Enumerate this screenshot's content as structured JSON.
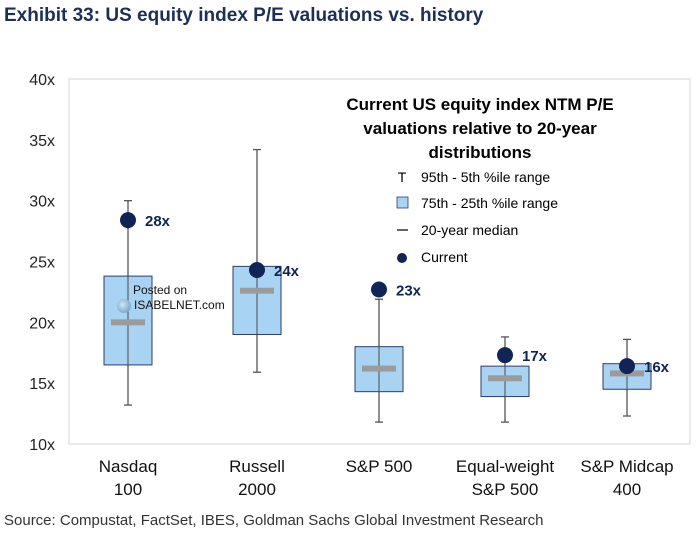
{
  "title": "Exhibit 33: US equity index P/E valuations vs. history",
  "source": "Source: Compustat, FactSet, IBES, Goldman Sachs Global Investment Research",
  "watermark": {
    "line1": "Posted on",
    "line2": "ISABELNET.com"
  },
  "colors": {
    "box_fill": "#a9d3f2",
    "box_stroke": "#2c3e6a",
    "median": "#9b9b9b",
    "current": "#0f2556",
    "whisker": "#555555",
    "title": "#1e2f56"
  },
  "chart_data": {
    "type": "box",
    "title": "Current US equity index NTM P/E valuations relative to 20-year distributions",
    "title_lines": [
      "Current US equity index NTM P/E",
      "valuations relative to 20-year",
      "distributions"
    ],
    "yaxis": {
      "min": 10,
      "max": 40,
      "step": 5,
      "tick_labels": [
        "10x",
        "15x",
        "20x",
        "25x",
        "30x",
        "35x",
        "40x"
      ]
    },
    "categories": [
      {
        "label_lines": [
          "Nasdaq",
          "100"
        ],
        "p5": 13.2,
        "p25": 16.5,
        "median": 20.0,
        "p75": 23.8,
        "p95": 30.0,
        "current": 28.4,
        "current_label": "28x"
      },
      {
        "label_lines": [
          "Russell",
          "2000"
        ],
        "p5": 15.9,
        "p25": 19.0,
        "median": 22.6,
        "p75": 24.6,
        "p95": 34.2,
        "current": 24.3,
        "current_label": "24x"
      },
      {
        "label_lines": [
          "S&P 500",
          ""
        ],
        "p5": 11.8,
        "p25": 14.3,
        "median": 16.2,
        "p75": 18.0,
        "p95": 21.9,
        "current": 22.7,
        "current_label": "23x"
      },
      {
        "label_lines": [
          "Equal-weight",
          "S&P 500"
        ],
        "p5": 11.8,
        "p25": 13.9,
        "median": 15.4,
        "p75": 16.4,
        "p95": 18.8,
        "current": 17.3,
        "current_label": "17x"
      },
      {
        "label_lines": [
          "S&P Midcap",
          "400"
        ],
        "p5": 12.3,
        "p25": 14.5,
        "median": 15.8,
        "p75": 16.6,
        "p95": 18.6,
        "current": 16.4,
        "current_label": "16x"
      }
    ],
    "legend": {
      "placement": "top-right",
      "items": [
        {
          "symbol": "T",
          "label": "95th - 5th %ile range"
        },
        {
          "symbol": "box",
          "label": "75th - 25th %ile range"
        },
        {
          "symbol": "dash",
          "label": "20-year median"
        },
        {
          "symbol": "dot",
          "label": "Current"
        }
      ]
    }
  }
}
